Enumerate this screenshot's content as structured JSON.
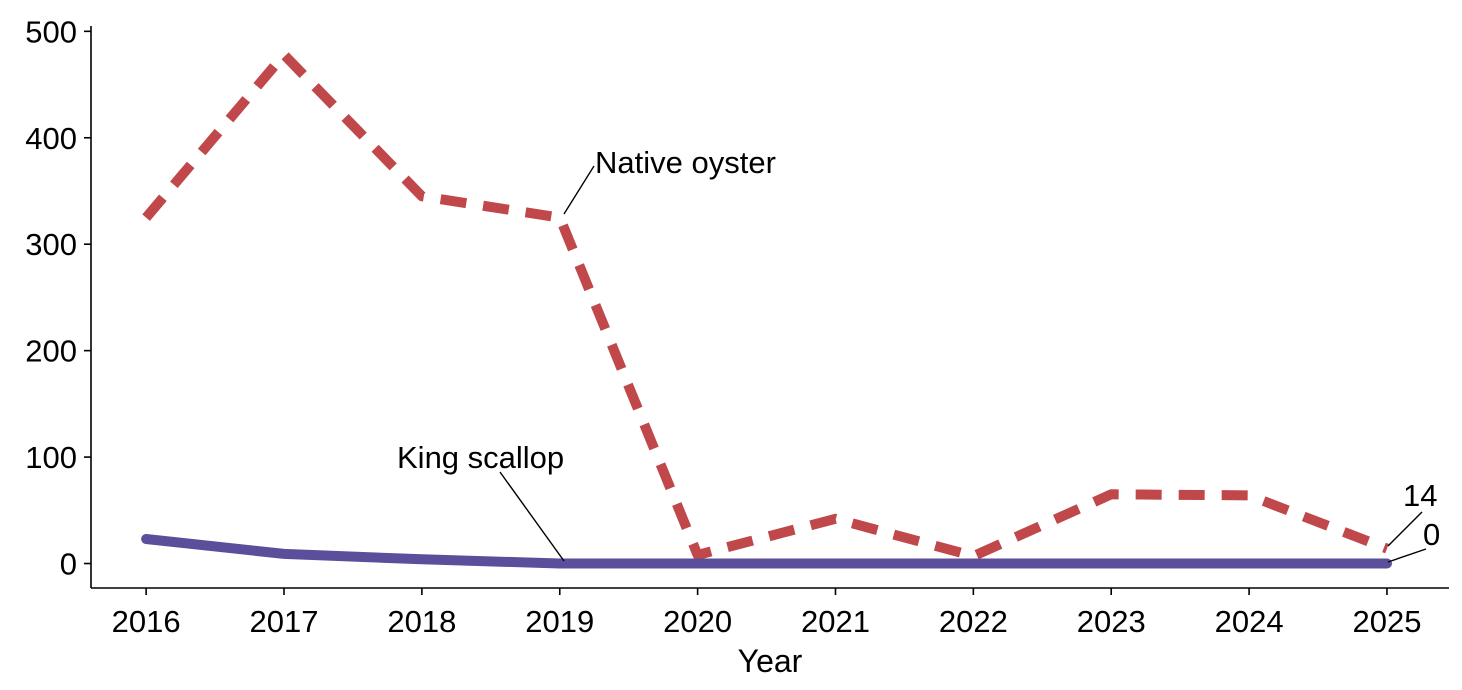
{
  "chart_data": {
    "type": "line",
    "title": "",
    "xlabel": "Year",
    "ylabel": "",
    "x": [
      2016,
      2017,
      2018,
      2019,
      2020,
      2021,
      2022,
      2023,
      2024,
      2025
    ],
    "x_tick_labels": [
      "2016",
      "2017",
      "2018",
      "2019",
      "2020",
      "2021",
      "2022",
      "2023",
      "2024",
      "2025"
    ],
    "y_ticks": [
      0,
      100,
      200,
      300,
      400,
      500
    ],
    "y_tick_labels": [
      "0",
      "100",
      "200",
      "300",
      "400",
      "500"
    ],
    "xlim": [
      2015.6,
      2025.45
    ],
    "ylim": [
      -23,
      505
    ],
    "grid": false,
    "legend": "none (direct labels)",
    "series": [
      {
        "name": "Native oyster",
        "values": [
          325,
          478,
          345,
          325,
          8,
          42,
          7,
          65,
          64,
          14
        ],
        "color": "#C0474A",
        "line_style": "dashed"
      },
      {
        "name": "King scallop",
        "values": [
          23,
          9,
          4,
          0,
          0,
          0,
          0,
          0,
          0,
          0
        ],
        "color": "#5B4F9B",
        "line_style": "solid"
      }
    ],
    "end_labels": [
      "14",
      "0"
    ]
  }
}
